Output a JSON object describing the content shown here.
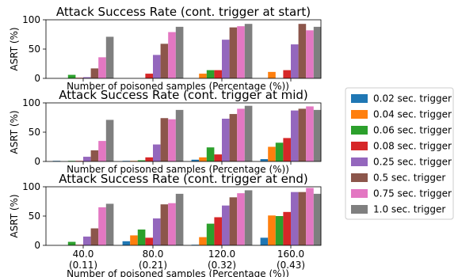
{
  "chart_data": [
    {
      "type": "bar",
      "title": "Attack Success Rate (cont. trigger at start)",
      "xlabel": "Number of poisoned samples (Percentage (%))",
      "ylabel": "ASRT (%)",
      "ylim": [
        0,
        100
      ],
      "yticks": [
        "0",
        "50",
        "100"
      ],
      "categories": [
        "40.0\n(0.11)",
        "80.0\n(0.21)",
        "120.0\n(0.32)",
        "160.0\n(0.43)"
      ],
      "show_xticklabels": false,
      "series": [
        {
          "name": "0.02 sec. trigger",
          "values": [
            0,
            0,
            0,
            0
          ]
        },
        {
          "name": "0.04 sec. trigger",
          "values": [
            0,
            0,
            8,
            11
          ]
        },
        {
          "name": "0.06 sec. trigger",
          "values": [
            6,
            0,
            14,
            0
          ]
        },
        {
          "name": "0.08 sec. trigger",
          "values": [
            1,
            8,
            14,
            14
          ]
        },
        {
          "name": "0.25 sec. trigger",
          "values": [
            2,
            40,
            66,
            58
          ]
        },
        {
          "name": "0.5 sec. trigger",
          "values": [
            17,
            59,
            87,
            93
          ]
        },
        {
          "name": "0.75 sec. trigger",
          "values": [
            36,
            79,
            89,
            82
          ]
        },
        {
          "name": "1.0 sec. trigger",
          "values": [
            71,
            88,
            93,
            88
          ]
        }
      ]
    },
    {
      "type": "bar",
      "title": "Attack Success Rate (cont. trigger at mid)",
      "xlabel": "Number of poisoned samples (Percentage (%))",
      "ylabel": "ASRT (%)",
      "ylim": [
        0,
        100
      ],
      "yticks": [
        "0",
        "50",
        "100"
      ],
      "categories": [
        "40.0\n(0.11)",
        "80.0\n(0.21)",
        "120.0\n(0.32)",
        "160.0\n(0.43)"
      ],
      "show_xticklabels": false,
      "series": [
        {
          "name": "0.02 sec. trigger",
          "values": [
            1,
            1,
            3,
            4
          ]
        },
        {
          "name": "0.04 sec. trigger",
          "values": [
            0,
            1,
            7,
            25
          ]
        },
        {
          "name": "0.06 sec. trigger",
          "values": [
            1,
            2,
            24,
            32
          ]
        },
        {
          "name": "0.08 sec. trigger",
          "values": [
            1,
            7,
            12,
            40
          ]
        },
        {
          "name": "0.25 sec. trigger",
          "values": [
            8,
            29,
            73,
            87
          ]
        },
        {
          "name": "0.5 sec. trigger",
          "values": [
            19,
            74,
            81,
            90
          ]
        },
        {
          "name": "0.75 sec. trigger",
          "values": [
            35,
            72,
            90,
            94
          ]
        },
        {
          "name": "1.0 sec. trigger",
          "values": [
            71,
            88,
            95,
            88
          ]
        }
      ]
    },
    {
      "type": "bar",
      "title": "Attack Success Rate (cont. trigger at end)",
      "xlabel": "Number of poisoned samples (Percentage (%))",
      "ylabel": "ASRT (%)",
      "ylim": [
        0,
        100
      ],
      "yticks": [
        "0",
        "50",
        "100"
      ],
      "categories": [
        "40.0\n(0.11)",
        "80.0\n(0.21)",
        "120.0\n(0.32)",
        "160.0\n(0.43)"
      ],
      "show_xticklabels": true,
      "series": [
        {
          "name": "0.02 sec. trigger",
          "values": [
            0,
            7,
            1,
            13
          ]
        },
        {
          "name": "0.04 sec. trigger",
          "values": [
            0,
            17,
            14,
            51
          ]
        },
        {
          "name": "0.06 sec. trigger",
          "values": [
            6,
            27,
            37,
            50
          ]
        },
        {
          "name": "0.08 sec. trigger",
          "values": [
            1,
            13,
            48,
            57
          ]
        },
        {
          "name": "0.25 sec. trigger",
          "values": [
            15,
            46,
            68,
            91
          ]
        },
        {
          "name": "0.5 sec. trigger",
          "values": [
            29,
            70,
            82,
            91
          ]
        },
        {
          "name": "0.75 sec. trigger",
          "values": [
            65,
            72,
            89,
            98
          ]
        },
        {
          "name": "1.0 sec. trigger",
          "values": [
            71,
            88,
            94,
            88
          ]
        }
      ]
    }
  ],
  "legend": {
    "placement": "right",
    "colors": [
      "#1f77b4",
      "#ff7f0e",
      "#2ca02c",
      "#d62728",
      "#9467bd",
      "#8c564b",
      "#e377c2",
      "#7f7f7f"
    ]
  }
}
